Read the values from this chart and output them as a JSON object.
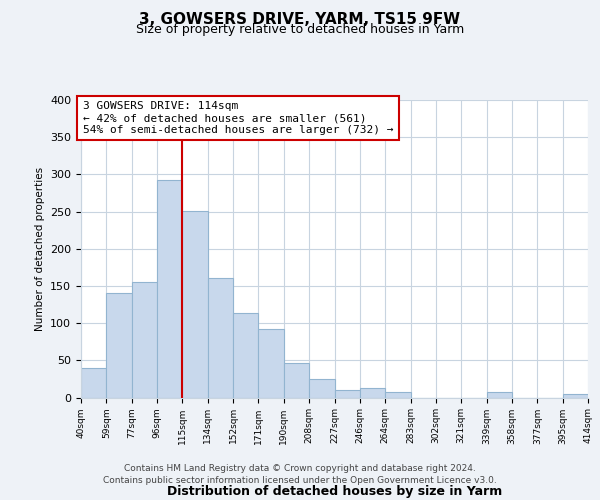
{
  "title": "3, GOWSERS DRIVE, YARM, TS15 9FW",
  "subtitle": "Size of property relative to detached houses in Yarm",
  "xlabel": "Distribution of detached houses by size in Yarm",
  "ylabel": "Number of detached properties",
  "bar_color": "#c8d8ec",
  "bar_edge_color": "#92b4d0",
  "counts": [
    40,
    140,
    155,
    293,
    251,
    161,
    113,
    92,
    46,
    25,
    10,
    13,
    8,
    0,
    0,
    0,
    8,
    0,
    0,
    5
  ],
  "tick_labels": [
    "40sqm",
    "59sqm",
    "77sqm",
    "96sqm",
    "115sqm",
    "134sqm",
    "152sqm",
    "171sqm",
    "190sqm",
    "208sqm",
    "227sqm",
    "246sqm",
    "264sqm",
    "283sqm",
    "302sqm",
    "321sqm",
    "339sqm",
    "358sqm",
    "377sqm",
    "395sqm",
    "414sqm"
  ],
  "annotation_line1": "3 GOWSERS DRIVE: 114sqm",
  "annotation_line2": "← 42% of detached houses are smaller (561)",
  "annotation_line3": "54% of semi-detached houses are larger (732) →",
  "vline_color": "#cc0000",
  "annotation_box_color": "#ffffff",
  "annotation_box_edge": "#cc0000",
  "ylim": [
    0,
    400
  ],
  "yticks": [
    0,
    50,
    100,
    150,
    200,
    250,
    300,
    350,
    400
  ],
  "footer1": "Contains HM Land Registry data © Crown copyright and database right 2024.",
  "footer2": "Contains public sector information licensed under the Open Government Licence v3.0.",
  "background_color": "#eef2f7",
  "plot_bg_color": "#ffffff",
  "grid_color": "#c8d4e0"
}
